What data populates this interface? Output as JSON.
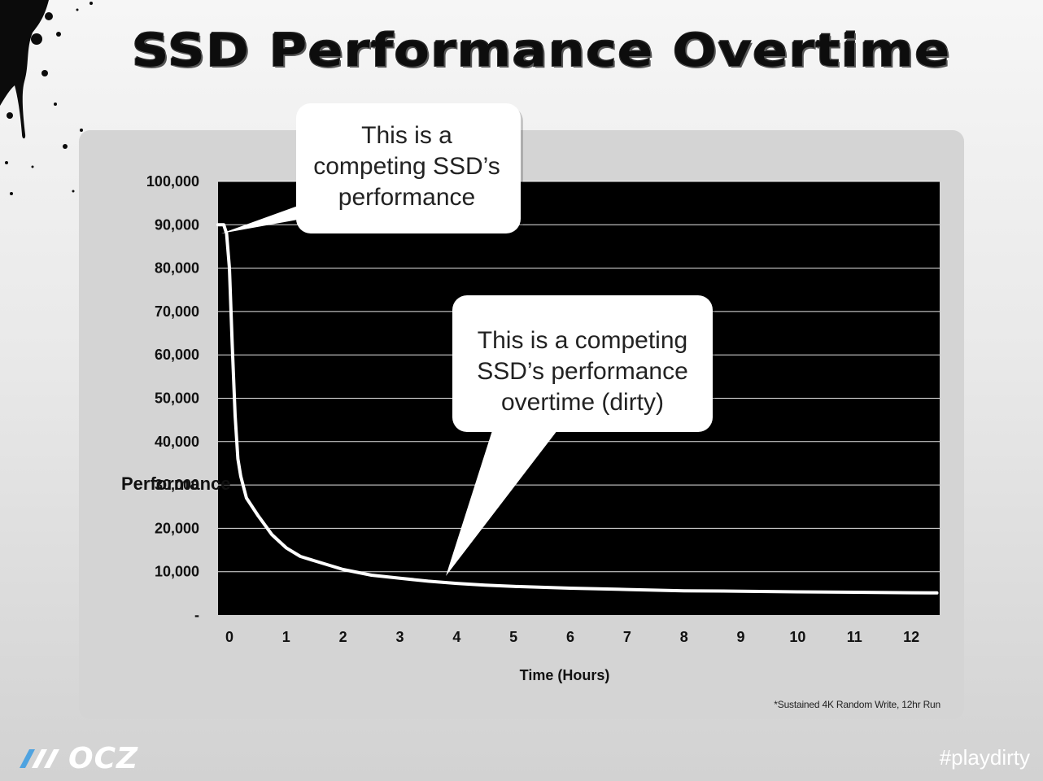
{
  "slide": {
    "title": "SSD Performance Overtime",
    "footnote": "*Sustained 4K Random Write, 12hr Run",
    "brand": "OCZ",
    "hashtag": "#playdirty"
  },
  "chart_data": {
    "type": "line",
    "xlabel": "Time (Hours)",
    "ylabel": "Performance",
    "xlim": [
      -0.2,
      12.5
    ],
    "ylim": [
      0,
      100000
    ],
    "y_ticks": [
      "-",
      "10,000",
      "20,000",
      "30,000",
      "40,000",
      "50,000",
      "60,000",
      "70,000",
      "80,000",
      "90,000",
      "100,000"
    ],
    "x_ticks": [
      "0",
      "1",
      "2",
      "3",
      "4",
      "5",
      "6",
      "7",
      "8",
      "9",
      "10",
      "11",
      "12"
    ],
    "grid": true,
    "series": [
      {
        "color": "#ffffff",
        "x": [
          -0.2,
          -0.1,
          -0.05,
          0.0,
          0.05,
          0.1,
          0.15,
          0.2,
          0.3,
          0.5,
          0.75,
          1.0,
          1.25,
          1.5,
          2.0,
          2.5,
          3.0,
          3.5,
          4.0,
          4.5,
          5.0,
          6.0,
          7.0,
          8.0,
          9.0,
          10.0,
          11.0,
          12.0,
          12.45
        ],
        "y": [
          90000,
          90000,
          88000,
          80000,
          62000,
          46000,
          36000,
          32000,
          27000,
          23000,
          18500,
          15500,
          13500,
          12500,
          10500,
          9200,
          8500,
          7800,
          7300,
          6900,
          6600,
          6200,
          5900,
          5600,
          5500,
          5350,
          5250,
          5150,
          5100
        ]
      }
    ],
    "annotations": [
      {
        "text_lines": [
          "This is a",
          "competing SSD’s",
          "performance"
        ]
      },
      {
        "text_lines": [
          "This is a competing",
          "SSD’s performance",
          "overtime (dirty)"
        ]
      }
    ]
  }
}
